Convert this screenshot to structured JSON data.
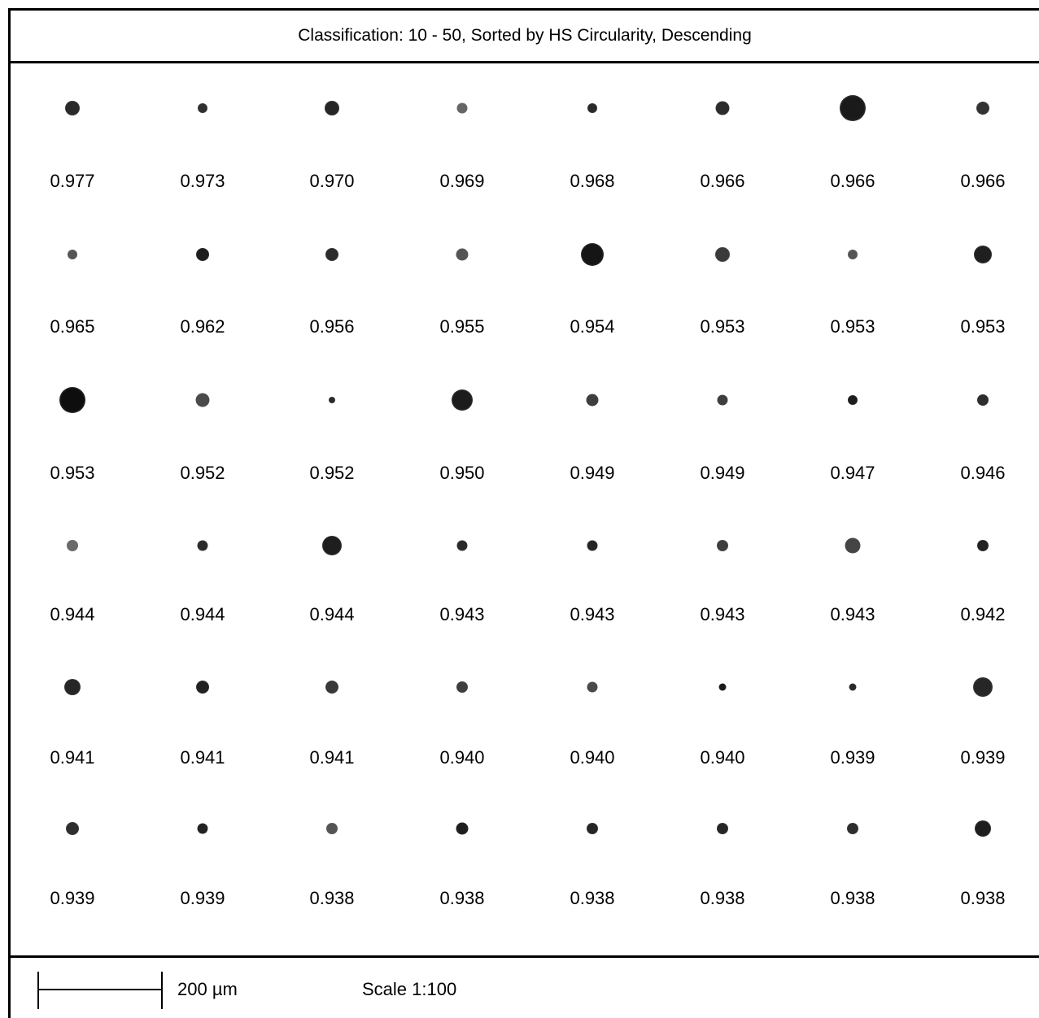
{
  "title": "Classification: 10 - 50, Sorted by HS Circularity, Descending",
  "particles": [
    {
      "value": "0.977",
      "size": 18,
      "tone": "#2a2a2a"
    },
    {
      "value": "0.973",
      "size": 12,
      "tone": "#303030"
    },
    {
      "value": "0.970",
      "size": 18,
      "tone": "#262626"
    },
    {
      "value": "0.969",
      "size": 13,
      "tone": "#666666"
    },
    {
      "value": "0.968",
      "size": 12,
      "tone": "#2a2a2a"
    },
    {
      "value": "0.966",
      "size": 17,
      "tone": "#2c2c2c"
    },
    {
      "value": "0.966",
      "size": 32,
      "tone": "#1a1a1a"
    },
    {
      "value": "0.966",
      "size": 16,
      "tone": "#333333"
    },
    {
      "value": "0.965",
      "size": 12,
      "tone": "#555555"
    },
    {
      "value": "0.962",
      "size": 16,
      "tone": "#1e1e1e"
    },
    {
      "value": "0.956",
      "size": 16,
      "tone": "#2c2c2c"
    },
    {
      "value": "0.955",
      "size": 15,
      "tone": "#555555"
    },
    {
      "value": "0.954",
      "size": 28,
      "tone": "#151515"
    },
    {
      "value": "0.953",
      "size": 18,
      "tone": "#3a3a3a"
    },
    {
      "value": "0.953",
      "size": 12,
      "tone": "#555555"
    },
    {
      "value": "0.953",
      "size": 22,
      "tone": "#1f1f1f"
    },
    {
      "value": "0.953",
      "size": 32,
      "tone": "#0e0e0e"
    },
    {
      "value": "0.952",
      "size": 17,
      "tone": "#4a4a4a"
    },
    {
      "value": "0.952",
      "size": 8,
      "tone": "#2a2a2a"
    },
    {
      "value": "0.950",
      "size": 26,
      "tone": "#1c1c1c"
    },
    {
      "value": "0.949",
      "size": 15,
      "tone": "#3e3e3e"
    },
    {
      "value": "0.949",
      "size": 13,
      "tone": "#3e3e3e"
    },
    {
      "value": "0.947",
      "size": 12,
      "tone": "#1e1e1e"
    },
    {
      "value": "0.946",
      "size": 14,
      "tone": "#2e2e2e"
    },
    {
      "value": "0.944",
      "size": 14,
      "tone": "#6a6a6a"
    },
    {
      "value": "0.944",
      "size": 13,
      "tone": "#2a2a2a"
    },
    {
      "value": "0.944",
      "size": 24,
      "tone": "#1e1e1e"
    },
    {
      "value": "0.943",
      "size": 13,
      "tone": "#2a2a2a"
    },
    {
      "value": "0.943",
      "size": 13,
      "tone": "#262626"
    },
    {
      "value": "0.943",
      "size": 14,
      "tone": "#3e3e3e"
    },
    {
      "value": "0.943",
      "size": 19,
      "tone": "#444444"
    },
    {
      "value": "0.942",
      "size": 14,
      "tone": "#222222"
    },
    {
      "value": "0.941",
      "size": 20,
      "tone": "#262626"
    },
    {
      "value": "0.941",
      "size": 16,
      "tone": "#222222"
    },
    {
      "value": "0.941",
      "size": 16,
      "tone": "#383838"
    },
    {
      "value": "0.940",
      "size": 14,
      "tone": "#3e3e3e"
    },
    {
      "value": "0.940",
      "size": 13,
      "tone": "#4a4a4a"
    },
    {
      "value": "0.940",
      "size": 9,
      "tone": "#1a1a1a"
    },
    {
      "value": "0.939",
      "size": 9,
      "tone": "#2a2a2a"
    },
    {
      "value": "0.939",
      "size": 24,
      "tone": "#262626"
    },
    {
      "value": "0.939",
      "size": 16,
      "tone": "#2e2e2e"
    },
    {
      "value": "0.939",
      "size": 13,
      "tone": "#222222"
    },
    {
      "value": "0.938",
      "size": 14,
      "tone": "#555555"
    },
    {
      "value": "0.938",
      "size": 15,
      "tone": "#1e1e1e"
    },
    {
      "value": "0.938",
      "size": 14,
      "tone": "#262626"
    },
    {
      "value": "0.938",
      "size": 14,
      "tone": "#262626"
    },
    {
      "value": "0.938",
      "size": 14,
      "tone": "#2e2e2e"
    },
    {
      "value": "0.938",
      "size": 20,
      "tone": "#1e1e1e"
    }
  ],
  "scale": {
    "bar_label": "200 µm",
    "ratio_label": "Scale 1:100"
  }
}
